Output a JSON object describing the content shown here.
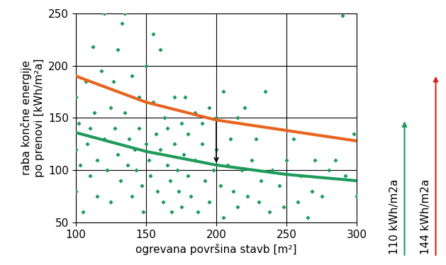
{
  "chart_data": {
    "type": "scatter",
    "x_label": "ogrevana površina stavb [m²]",
    "y_label": "raba končne energije\npo prenovi [kWh/m²a]",
    "xlim": [
      100,
      300
    ],
    "xticks": [
      100,
      150,
      200,
      250,
      300
    ],
    "ylim": [
      50,
      250
    ],
    "yticks": [
      50,
      100,
      150,
      200,
      250
    ],
    "grid": true,
    "series": [
      {
        "type": "scatter",
        "color": "#1e9a5a",
        "marker": "diamond",
        "x": [
          100,
          100,
          100,
          102,
          103,
          105,
          107,
          108,
          110,
          110,
          112,
          113,
          115,
          115,
          118,
          120,
          120,
          122,
          125,
          125,
          127,
          128,
          130,
          130,
          132,
          133,
          135,
          135,
          137,
          138,
          140,
          140,
          142,
          143,
          145,
          145,
          147,
          148,
          150,
          150,
          152,
          153,
          155,
          155,
          157,
          158,
          160,
          160,
          162,
          163,
          165,
          165,
          167,
          168,
          170,
          170,
          172,
          173,
          175,
          175,
          177,
          178,
          180,
          180,
          182,
          185,
          185,
          187,
          190,
          190,
          192,
          195,
          195,
          198,
          200,
          200,
          203,
          205,
          205,
          208,
          210,
          212,
          215,
          215,
          218,
          220,
          222,
          225,
          228,
          230,
          232,
          235,
          238,
          240,
          245,
          248,
          250,
          255,
          258,
          260,
          265,
          268,
          270,
          275,
          280,
          285,
          290,
          292,
          298,
          300
        ],
        "values": [
          170,
          120,
          80,
          145,
          105,
          60,
          185,
          125,
          140,
          95,
          218,
          155,
          110,
          75,
          195,
          250,
          130,
          100,
          160,
          70,
          185,
          140,
          215,
          115,
          90,
          240,
          250,
          155,
          105,
          130,
          190,
          75,
          120,
          100,
          170,
          140,
          85,
          60,
          200,
          125,
          110,
          95,
          165,
          230,
          135,
          80,
          215,
          120,
          70,
          150,
          105,
          140,
          90,
          60,
          170,
          125,
          100,
          80,
          145,
          65,
          115,
          170,
          135,
          95,
          75,
          155,
          110,
          60,
          145,
          125,
          90,
          160,
          70,
          100,
          150,
          120,
          85,
          175,
          55,
          105,
          130,
          80,
          150,
          65,
          100,
          160,
          75,
          110,
          130,
          70,
          90,
          175,
          60,
          100,
          85,
          65,
          110,
          130,
          70,
          95,
          55,
          80,
          110,
          75,
          100,
          110,
          248,
          95,
          135,
          75
        ]
      },
      {
        "type": "line",
        "color": "#e8641e",
        "line_style": "solid",
        "x": [
          100,
          150,
          200,
          250,
          300
        ],
        "values": [
          190,
          165,
          148,
          138,
          128
        ]
      },
      {
        "type": "line",
        "color": "#1e9a5a",
        "line_style": "solid",
        "x": [
          100,
          150,
          200,
          250,
          300
        ],
        "values": [
          136,
          118,
          105,
          96,
          90
        ]
      }
    ],
    "arrow": {
      "x": 200,
      "from": 148,
      "to": 105
    },
    "annotations": [
      {
        "text": "110 kWh/m2a",
        "color": "#1e9a5a"
      },
      {
        "text": "144 kWh/m2a",
        "color": "#e02020"
      }
    ]
  }
}
